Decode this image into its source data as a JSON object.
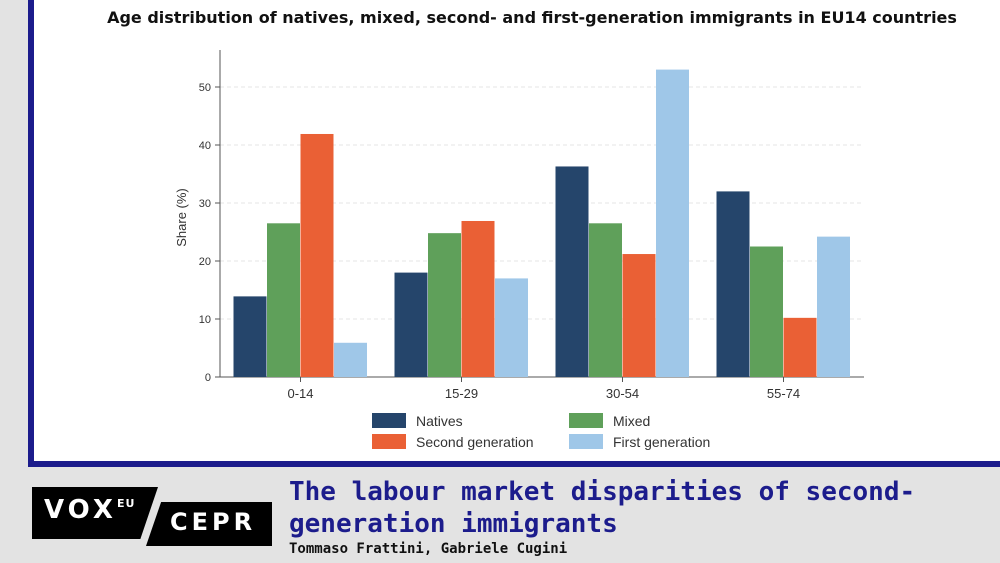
{
  "article": {
    "title": "The labour market disparities of second-generation immigrants",
    "authors": "Tommaso Frattini, Gabriele Cugini"
  },
  "logo": {
    "vox": "VOX",
    "eu": "EU",
    "cepr": "CEPR"
  },
  "colors": {
    "brand_blue": "#1c1c8c",
    "natives": "#25456b",
    "mixed": "#5fa05a",
    "second_generation": "#ea6035",
    "first_generation": "#9fc7e8"
  },
  "chart_data": {
    "type": "bar",
    "title": "Age distribution of natives, mixed, second- and first-generation immigrants in EU14 countries",
    "xlabel": "",
    "ylabel": "Share (%)",
    "ylim": [
      0,
      55
    ],
    "yticks": [
      0,
      10,
      20,
      30,
      40,
      50
    ],
    "grid": true,
    "legend_position": "bottom",
    "categories": [
      "0-14",
      "15-29",
      "30-54",
      "55-74"
    ],
    "series": [
      {
        "name": "Natives",
        "color": "#25456b",
        "values": [
          13.9,
          18.0,
          36.3,
          32.0
        ]
      },
      {
        "name": "Mixed",
        "color": "#5fa05a",
        "values": [
          26.5,
          24.8,
          26.5,
          22.5
        ]
      },
      {
        "name": "Second generation",
        "color": "#ea6035",
        "values": [
          41.9,
          26.9,
          21.2,
          10.2
        ]
      },
      {
        "name": "First generation",
        "color": "#9fc7e8",
        "values": [
          5.9,
          17.0,
          53.0,
          24.2
        ]
      }
    ]
  }
}
